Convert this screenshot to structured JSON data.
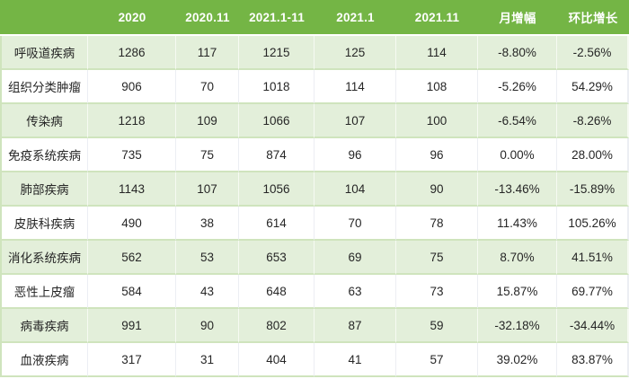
{
  "colors": {
    "header_bg": "#74b545",
    "header_text": "#ffffff",
    "row_alt_bg": "#e3efda",
    "row_bg": "#ffffff",
    "edge_green": "#cfe4bd",
    "text": "#262626"
  },
  "chart_data": {
    "type": "table",
    "columns": [
      "",
      "2020",
      "2020.11",
      "2021.1-11",
      "2021.1",
      "2021.11",
      "月增幅",
      "环比增长"
    ],
    "rows": [
      [
        "呼吸道疾病",
        "1286",
        "117",
        "1215",
        "125",
        "114",
        "-8.80%",
        "-2.56%"
      ],
      [
        "组织分类肿瘤",
        "906",
        "70",
        "1018",
        "114",
        "108",
        "-5.26%",
        "54.29%"
      ],
      [
        "传染病",
        "1218",
        "109",
        "1066",
        "107",
        "100",
        "-6.54%",
        "-8.26%"
      ],
      [
        "免疫系统疾病",
        "735",
        "75",
        "874",
        "96",
        "96",
        "0.00%",
        "28.00%"
      ],
      [
        "肺部疾病",
        "1143",
        "107",
        "1056",
        "104",
        "90",
        "-13.46%",
        "-15.89%"
      ],
      [
        "皮肤科疾病",
        "490",
        "38",
        "614",
        "70",
        "78",
        "11.43%",
        "105.26%"
      ],
      [
        "消化系统疾病",
        "562",
        "53",
        "653",
        "69",
        "75",
        "8.70%",
        "41.51%"
      ],
      [
        "恶性上皮瘤",
        "584",
        "43",
        "648",
        "63",
        "73",
        "15.87%",
        "69.77%"
      ],
      [
        "病毒疾病",
        "991",
        "90",
        "802",
        "87",
        "59",
        "-32.18%",
        "-34.44%"
      ],
      [
        "血液疾病",
        "317",
        "31",
        "404",
        "41",
        "57",
        "39.02%",
        "83.87%"
      ]
    ],
    "row_striping": "odd rows light green, even rows white",
    "header_style": "green background, white bold text"
  }
}
